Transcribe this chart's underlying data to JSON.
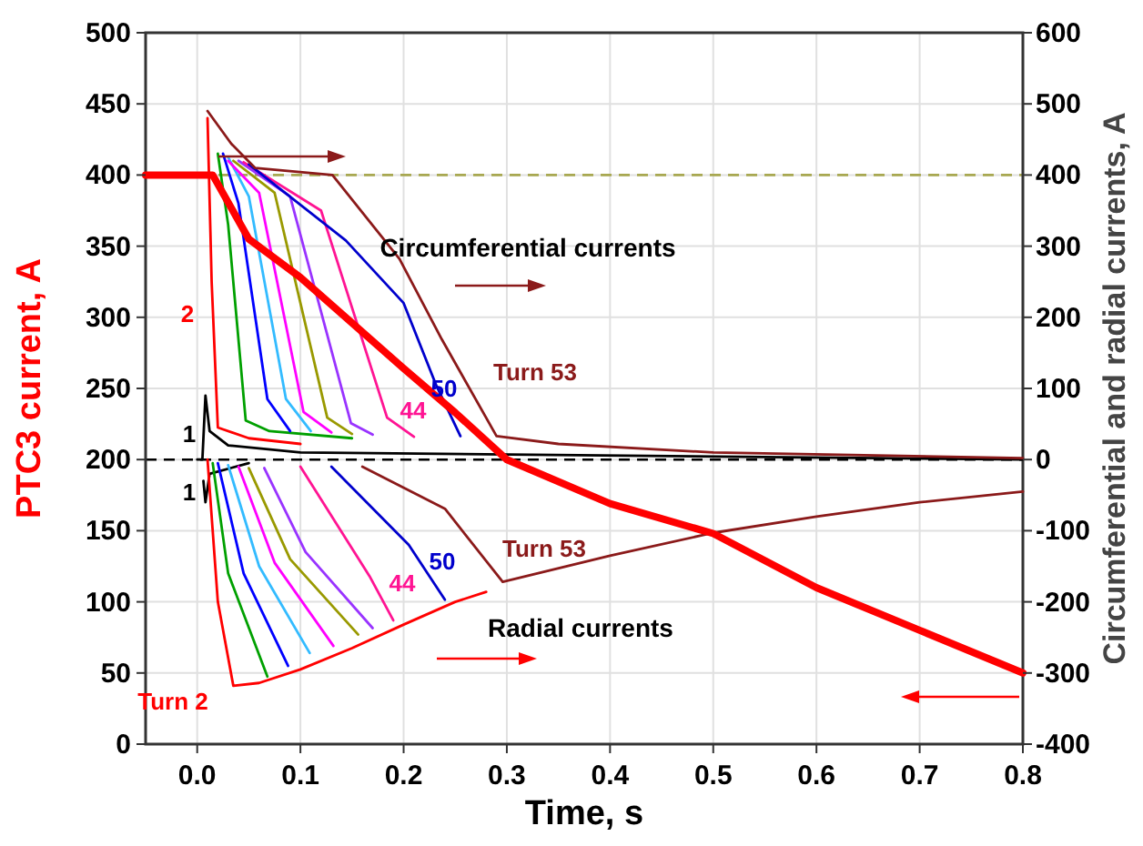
{
  "chart_data": {
    "type": "line",
    "xlabel": "Time, s",
    "ylabel": "PTC3 current, A",
    "y2label": "Circumferential and radial currents, A",
    "xlim": [
      -0.05,
      0.8
    ],
    "xticks": [
      {
        "value": 0,
        "label": "0.0"
      },
      0.1,
      0.2,
      0.3,
      0.4,
      0.5,
      0.6,
      0.7,
      0.8
    ],
    "ylim": [
      0,
      500
    ],
    "yticks": [
      0,
      50,
      100,
      150,
      200,
      250,
      300,
      350,
      400,
      450,
      500
    ],
    "y2lim": [
      -400,
      600
    ],
    "y2ticks": [
      -400,
      -300,
      -200,
      -100,
      0,
      100,
      200,
      300,
      400,
      500,
      600
    ],
    "grid": true,
    "series": [
      {
        "color": "#000000",
        "axis": "y2",
        "x": [
          0.0,
          0.005,
          0.008,
          0.012,
          0.03,
          0.1,
          0.8
        ],
        "values": [
          0,
          0,
          90,
          40,
          20,
          10,
          0
        ]
      },
      {
        "color": "#000000",
        "axis": "y2",
        "x": [
          0.006,
          0.008,
          0.012,
          0.05
        ],
        "values": [
          -30,
          -60,
          -20,
          -5
        ]
      },
      {
        "color": "#ff0000",
        "axis": "y2",
        "x": [
          0.01,
          0.014,
          0.02,
          0.05,
          0.1
        ],
        "values": [
          480,
          250,
          45,
          30,
          22
        ]
      },
      {
        "color": "#00a000",
        "axis": "y2",
        "x": [
          0.02,
          0.03,
          0.047,
          0.07,
          0.15
        ],
        "values": [
          430,
          330,
          55,
          40,
          30
        ]
      },
      {
        "color": "#0000ff",
        "axis": "y2",
        "x": [
          0.025,
          0.04,
          0.068,
          0.09
        ],
        "values": [
          430,
          360,
          85,
          40
        ]
      },
      {
        "color": "#33bbff",
        "axis": "y2",
        "x": [
          0.03,
          0.05,
          0.086,
          0.11
        ],
        "values": [
          425,
          370,
          85,
          40
        ]
      },
      {
        "color": "#ff00ff",
        "axis": "y2",
        "x": [
          0.03,
          0.06,
          0.103,
          0.13
        ],
        "values": [
          420,
          375,
          67,
          38
        ]
      },
      {
        "color": "#999900",
        "axis": "y2",
        "x": [
          0.035,
          0.075,
          0.126,
          0.15
        ],
        "values": [
          420,
          375,
          59,
          36
        ]
      },
      {
        "color": "#9933ff",
        "axis": "y2",
        "x": [
          0.04,
          0.09,
          0.149,
          0.17
        ],
        "values": [
          420,
          370,
          51,
          35
        ]
      },
      {
        "color": "#ff1493",
        "axis": "y2",
        "x": [
          0.045,
          0.12,
          0.184,
          0.21
        ],
        "values": [
          418,
          350,
          59,
          32
        ]
      },
      {
        "color": "#0000cc",
        "axis": "y2",
        "x": [
          0.05,
          0.144,
          0.2,
          0.232,
          0.255
        ],
        "values": [
          415,
          308,
          220,
          103,
          33
        ]
      },
      {
        "color": "#8b1a1a",
        "axis": "y2",
        "x": [
          0.01,
          0.033,
          0.056,
          0.131,
          0.196,
          0.237,
          0.29,
          0.35,
          0.5,
          0.8
        ],
        "values": [
          490,
          444,
          410,
          400,
          282,
          169,
          33,
          22,
          10,
          2
        ]
      },
      {
        "color": "#ff0000",
        "axis": "y2",
        "x": [
          0.01,
          0.02,
          0.035,
          0.06,
          0.1,
          0.15,
          0.2,
          0.25,
          0.28
        ],
        "values": [
          0,
          -200,
          -318,
          -314,
          -295,
          -265,
          -232,
          -200,
          -186
        ]
      },
      {
        "color": "#00a000",
        "axis": "y2",
        "x": [
          0.015,
          0.03,
          0.068
        ],
        "values": [
          -5,
          -160,
          -305
        ]
      },
      {
        "color": "#0000ff",
        "axis": "y2",
        "x": [
          0.02,
          0.045,
          0.088
        ],
        "values": [
          -5,
          -160,
          -290
        ]
      },
      {
        "color": "#33bbff",
        "axis": "y2",
        "x": [
          0.03,
          0.06,
          0.109
        ],
        "values": [
          -8,
          -150,
          -272
        ]
      },
      {
        "color": "#ff00ff",
        "axis": "y2",
        "x": [
          0.04,
          0.075,
          0.132
        ],
        "values": [
          -10,
          -145,
          -262
        ]
      },
      {
        "color": "#999900",
        "axis": "y2",
        "x": [
          0.05,
          0.09,
          0.156
        ],
        "values": [
          -12,
          -140,
          -246
        ]
      },
      {
        "color": "#9933ff",
        "axis": "y2",
        "x": [
          0.065,
          0.105,
          0.17
        ],
        "values": [
          -12,
          -130,
          -237
        ]
      },
      {
        "color": "#ff1493",
        "axis": "y2",
        "x": [
          0.1,
          0.167,
          0.19
        ],
        "values": [
          -10,
          -164,
          -226
        ]
      },
      {
        "color": "#0000cc",
        "axis": "y2",
        "x": [
          0.13,
          0.205,
          0.24
        ],
        "values": [
          -10,
          -120,
          -197
        ]
      },
      {
        "color": "#8b1a1a",
        "axis": "y2",
        "x": [
          0.16,
          0.24,
          0.296,
          0.4,
          0.5,
          0.6,
          0.7,
          0.8
        ],
        "values": [
          -10,
          -69,
          -172,
          -135,
          -103,
          -80,
          -60,
          -45
        ]
      },
      {
        "color": "#ff0000",
        "axis": "y",
        "x": [
          -0.05,
          0.015,
          0.05,
          0.1,
          0.2,
          0.25,
          0.3,
          0.4,
          0.5,
          0.6,
          0.7,
          0.8
        ],
        "values": [
          400,
          400,
          355,
          328,
          264,
          233,
          200,
          169,
          148,
          110,
          80,
          50
        ]
      }
    ],
    "ref_lines": [
      {
        "axis": "y",
        "value": 400,
        "color": "#a8a850",
        "line_style": "dashed"
      },
      {
        "axis": "y2",
        "value": 0,
        "color": "#000000",
        "line_style": "dashed"
      }
    ],
    "annotations": [
      "Circumferential currents",
      "Radial currents",
      "Turn 53",
      "50",
      "44",
      "Turn 53",
      "50",
      "44",
      "Turn 2",
      "2",
      "1",
      "1"
    ]
  }
}
